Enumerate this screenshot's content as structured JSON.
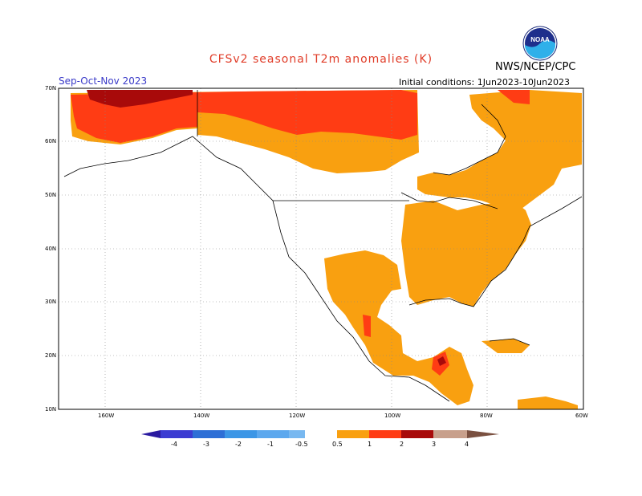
{
  "title": "CFSv2 seasonal T2m anomalies (K)",
  "agency": "NWS/NCEP/CPC",
  "season": "Sep-Oct-Nov 2023",
  "initial_conditions": "Initial conditions: 1Jun2023-10Jun2023",
  "logo_icon": "noaa-logo-icon",
  "latitudes": [
    "70N",
    "60N",
    "50N",
    "40N",
    "30N",
    "20N",
    "10N"
  ],
  "longitudes": [
    "160W",
    "140W",
    "120W",
    "100W",
    "80W",
    "60W"
  ],
  "colorbar": {
    "labels": [
      "-4",
      "-3",
      "-2",
      "-1",
      "-0.5",
      "0.5",
      "1",
      "2",
      "3",
      "4"
    ],
    "colors": [
      "#2a1aa0",
      "#3c3cd2",
      "#2e6fd6",
      "#3c96e6",
      "#78b8f0",
      "#ffffff",
      "#f9a010",
      "#ff3c14",
      "#a80a0a",
      "#c8a08c",
      "#7a5040"
    ]
  },
  "anomaly_colors": {
    "above_0.5": "#f9a010",
    "above_1": "#ff3c14",
    "above_2": "#a80a0a"
  }
}
